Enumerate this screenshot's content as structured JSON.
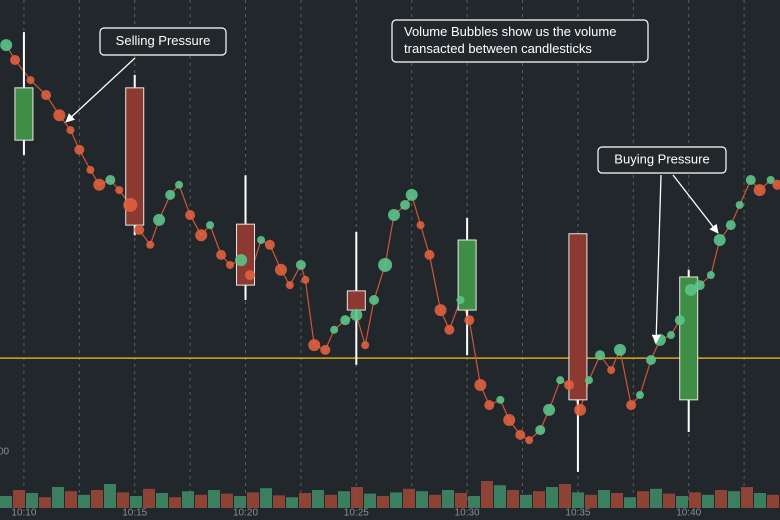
{
  "chart_data": {
    "type": "candlestick",
    "x": [
      10,
      15,
      20,
      25,
      30,
      35,
      40
    ],
    "open": [
      70.8,
      81.7,
      53.3,
      39.4,
      35.4,
      51.3,
      16.7
    ],
    "high": [
      93.3,
      84.4,
      63.5,
      51.7,
      54.6,
      51.3,
      43.8
    ],
    "low": [
      67.7,
      51.0,
      37.5,
      24.0,
      26.0,
      1.7,
      10.0
    ],
    "close": [
      81.7,
      53.1,
      40.6,
      35.4,
      50.0,
      16.7,
      42.3
    ],
    "up_color": "#3e8e46",
    "down_color": "#8c3a31",
    "xlim": [
      8.92,
      44.12
    ],
    "ylim": [
      0,
      100
    ],
    "xticks": [
      {
        "value": 10,
        "label": "10:10"
      },
      {
        "value": 15,
        "label": "10:15"
      },
      {
        "value": 20,
        "label": "10:20"
      },
      {
        "value": 25,
        "label": "10:25"
      },
      {
        "value": 30,
        "label": "10:30"
      },
      {
        "value": 35,
        "label": "10:35"
      },
      {
        "value": 40,
        "label": "10:40"
      }
    ],
    "grid": true,
    "reference_line": {
      "value": 25.4,
      "color": "#d9a520"
    },
    "bubbles": {
      "x": [
        9.2,
        9.6,
        10.3,
        11.0,
        11.6,
        12.1,
        12.5,
        13.0,
        13.4,
        13.9,
        14.3,
        14.8,
        15.2,
        15.7,
        16.1,
        16.6,
        17.0,
        17.5,
        18.0,
        18.4,
        18.9,
        19.3,
        19.8,
        20.2,
        20.7,
        21.1,
        21.6,
        22.0,
        22.5,
        22.7,
        23.1,
        23.6,
        24.0,
        24.5,
        25.0,
        25.4,
        25.8,
        26.3,
        26.7,
        27.2,
        27.5,
        27.9,
        28.3,
        28.8,
        29.2,
        29.7,
        30.1,
        30.6,
        31.0,
        31.5,
        31.9,
        32.4,
        32.8,
        33.3,
        33.7,
        34.2,
        34.6,
        35.1,
        35.5,
        36.0,
        36.5,
        36.9,
        37.4,
        37.8,
        38.3,
        38.7,
        39.2,
        39.6,
        40.1,
        40.5,
        41.0,
        41.4,
        41.9,
        42.3,
        42.8,
        43.2,
        43.7,
        44.0
      ],
      "values": [
        90.6,
        87.5,
        83.3,
        80.2,
        76.0,
        72.9,
        68.8,
        64.6,
        61.5,
        62.5,
        60.4,
        57.3,
        52.1,
        49.0,
        54.2,
        59.4,
        61.5,
        55.2,
        51.0,
        53.1,
        46.9,
        44.8,
        45.8,
        42.7,
        50.0,
        49.0,
        43.8,
        40.6,
        44.8,
        41.7,
        28.1,
        27.1,
        31.3,
        33.3,
        34.4,
        28.1,
        37.5,
        44.8,
        55.2,
        57.3,
        59.4,
        53.1,
        46.9,
        35.4,
        31.3,
        37.5,
        33.3,
        19.8,
        15.6,
        16.7,
        12.5,
        9.4,
        8.3,
        10.4,
        14.6,
        20.8,
        19.8,
        14.6,
        20.8,
        26.0,
        22.9,
        27.1,
        15.6,
        17.7,
        25.0,
        29.2,
        30.2,
        33.3,
        39.6,
        40.6,
        42.7,
        50.0,
        53.1,
        57.3,
        62.5,
        60.4,
        62.5,
        61.5
      ],
      "sizes": [
        6,
        5,
        4,
        5,
        6,
        4,
        5,
        4,
        6,
        5,
        4,
        7,
        5,
        4,
        6,
        5,
        4,
        5,
        6,
        4,
        5,
        4,
        6,
        5,
        4,
        5,
        6,
        4,
        5,
        4,
        6,
        5,
        4,
        5,
        6,
        4,
        5,
        7,
        6,
        5,
        6,
        4,
        5,
        6,
        5,
        4,
        5,
        6,
        5,
        4,
        6,
        5,
        4,
        5,
        6,
        4,
        5,
        6,
        4,
        5,
        4,
        6,
        5,
        4,
        5,
        6,
        4,
        5,
        6,
        5,
        4,
        6,
        5,
        4,
        5,
        6,
        4,
        5
      ],
      "up_color": "#5cc48a",
      "down_color": "#e0603e"
    },
    "volume": {
      "axis_label": "00",
      "ylim": [
        0,
        100
      ],
      "values": [
        20,
        30,
        25,
        18,
        35,
        28,
        22,
        30,
        40,
        26,
        20,
        32,
        25,
        18,
        28,
        22,
        30,
        24,
        20,
        26,
        33,
        21,
        18,
        25,
        30,
        22,
        28,
        35,
        24,
        20,
        26,
        32,
        28,
        22,
        30,
        25,
        20,
        45,
        38,
        30,
        22,
        28,
        35,
        40,
        26,
        22,
        30,
        25,
        18,
        28,
        32,
        24,
        20,
        26,
        22,
        30,
        28,
        35,
        25,
        22
      ],
      "up_color": "#3f8f6a",
      "down_color": "#a04a3a"
    },
    "annotations": [
      {
        "lines": [
          "Selling Pressure"
        ]
      },
      {
        "lines": [
          "Volume Bubbles show us the volume",
          "transacted between candlesticks"
        ]
      },
      {
        "lines": [
          "Buying Pressure"
        ]
      }
    ]
  }
}
